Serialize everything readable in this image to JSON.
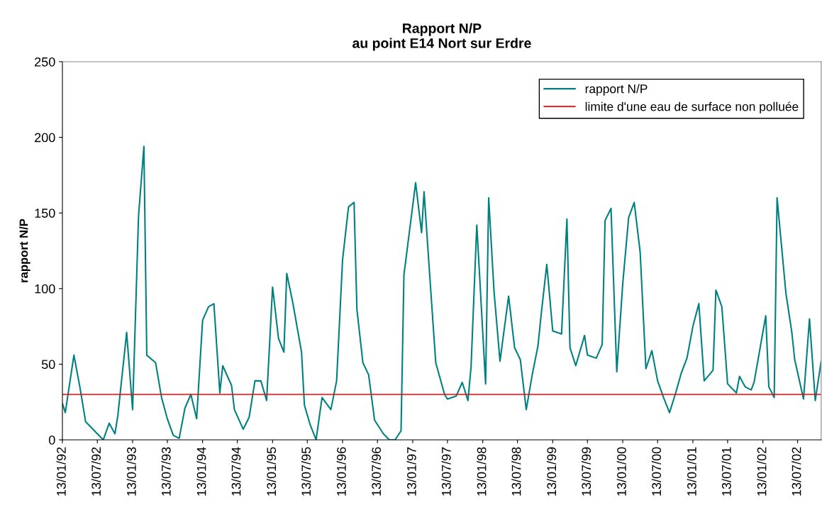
{
  "chart_data": {
    "type": "line",
    "title": "Rapport N/P\nau point E14 Nort sur Erdre",
    "ylabel": "rapport N/P",
    "x": [
      "1992-01-13",
      "1992-01-28",
      "1992-03-13",
      "1992-04-13",
      "1992-05-13",
      "1992-06-13",
      "1992-07-13",
      "1992-08-13",
      "1992-09-13",
      "1992-10-13",
      "1992-10-28",
      "1992-12-13",
      "1993-01-13",
      "1993-02-13",
      "1993-03-13",
      "1993-03-28",
      "1993-05-13",
      "1993-06-13",
      "1993-07-13",
      "1993-08-13",
      "1993-09-13",
      "1993-10-13",
      "1993-11-13",
      "1993-12-13",
      "1994-01-13",
      "1994-02-13",
      "1994-03-13",
      "1994-04-13",
      "1994-04-28",
      "1994-06-13",
      "1994-06-28",
      "1994-08-13",
      "1994-09-13",
      "1994-10-13",
      "1994-11-13",
      "1994-12-13",
      "1995-01-13",
      "1995-02-13",
      "1995-03-13",
      "1995-03-28",
      "1995-04-28",
      "1995-06-13",
      "1995-06-28",
      "1995-07-28",
      "1995-08-28",
      "1995-09-28",
      "1995-11-13",
      "1995-12-13",
      "1996-01-13",
      "1996-02-13",
      "1996-03-13",
      "1996-03-28",
      "1996-04-28",
      "1996-05-28",
      "1996-06-28",
      "1996-08-13",
      "1996-09-13",
      "1996-10-13",
      "1996-11-13",
      "1996-11-28",
      "1997-01-28",
      "1997-02-28",
      "1997-03-13",
      "1997-04-13",
      "1997-05-13",
      "1997-06-28",
      "1997-07-13",
      "1997-08-28",
      "1997-09-28",
      "1997-10-28",
      "1997-11-13",
      "1997-12-13",
      "1998-01-28",
      "1998-02-13",
      "1998-03-13",
      "1998-04-13",
      "1998-05-28",
      "1998-06-28",
      "1998-07-28",
      "1998-08-28",
      "1998-09-28",
      "1998-10-28",
      "1998-11-13",
      "1998-12-13",
      "1999-01-13",
      "1999-02-28",
      "1999-03-28",
      "1999-04-13",
      "1999-05-13",
      "1999-06-28",
      "1999-07-13",
      "1999-08-28",
      "1999-09-28",
      "1999-10-13",
      "1999-11-13",
      "1999-12-13",
      "2000-01-13",
      "2000-02-13",
      "2000-03-13",
      "2000-04-13",
      "2000-05-13",
      "2000-06-13",
      "2000-07-13",
      "2000-08-13",
      "2000-09-13",
      "2000-10-13",
      "2000-11-13",
      "2000-12-13",
      "2001-01-13",
      "2001-02-13",
      "2001-03-13",
      "2001-04-28",
      "2001-05-13",
      "2001-06-13",
      "2001-07-13",
      "2001-08-28",
      "2001-09-13",
      "2001-10-13",
      "2001-11-13",
      "2001-11-28",
      "2002-01-28",
      "2002-02-13",
      "2002-03-13",
      "2002-03-28",
      "2002-05-13",
      "2002-06-13",
      "2002-06-28",
      "2002-08-13",
      "2002-09-13",
      "2002-10-13",
      "2002-11-13"
    ],
    "series": [
      {
        "name": "rapport N/P",
        "color": "#008080",
        "values": [
          24,
          18,
          56,
          35,
          12,
          8,
          4,
          0,
          11,
          4,
          16,
          71,
          20,
          148,
          194,
          56,
          51,
          28,
          14,
          3,
          1,
          21,
          30,
          14,
          79,
          88,
          90,
          31,
          49,
          36,
          20,
          7,
          15,
          39,
          39,
          26,
          101,
          67,
          58,
          110,
          91,
          58,
          23,
          10,
          0,
          28,
          20,
          39,
          119,
          154,
          157,
          86,
          51,
          43,
          13,
          4,
          0,
          0,
          6,
          109,
          170,
          137,
          164,
          106,
          51,
          30,
          27,
          29,
          38,
          26,
          48,
          142,
          37,
          160,
          98,
          52,
          95,
          61,
          53,
          20,
          43,
          62,
          82,
          116,
          72,
          70,
          146,
          61,
          49,
          69,
          56,
          54,
          63,
          145,
          153,
          45,
          103,
          147,
          157,
          124,
          47,
          59,
          39,
          28,
          18,
          30,
          44,
          54,
          75,
          90,
          39,
          46,
          99,
          88,
          37,
          31,
          42,
          35,
          33,
          38,
          82,
          35,
          28,
          160,
          97,
          71,
          53,
          27,
          80,
          26,
          52
        ]
      }
    ],
    "ref_lines": [
      {
        "axis": "y",
        "value": 30,
        "label": "limite d'une eau de surface non polluée",
        "color": "#ff0000",
        "line_style": "solid"
      }
    ],
    "xlim": [
      "1992-01-13",
      "2002-11-13"
    ],
    "xticks": [
      {
        "value": "1992-01-13",
        "label": "13/01/92"
      },
      {
        "value": "1992-07-13",
        "label": "13/07/92"
      },
      {
        "value": "1993-01-13",
        "label": "13/01/93"
      },
      {
        "value": "1993-07-13",
        "label": "13/07/93"
      },
      {
        "value": "1994-01-13",
        "label": "13/01/94"
      },
      {
        "value": "1994-07-13",
        "label": "13/07/94"
      },
      {
        "value": "1995-01-13",
        "label": "13/01/95"
      },
      {
        "value": "1995-07-13",
        "label": "13/07/95"
      },
      {
        "value": "1996-01-13",
        "label": "13/01/96"
      },
      {
        "value": "1996-07-13",
        "label": "13/07/96"
      },
      {
        "value": "1997-01-13",
        "label": "13/01/97"
      },
      {
        "value": "1997-07-13",
        "label": "13/07/97"
      },
      {
        "value": "1998-01-13",
        "label": "13/01/98"
      },
      {
        "value": "1998-07-13",
        "label": "13/07/98"
      },
      {
        "value": "1999-01-13",
        "label": "13/01/99"
      },
      {
        "value": "1999-07-13",
        "label": "13/07/99"
      },
      {
        "value": "2000-01-13",
        "label": "13/01/00"
      },
      {
        "value": "2000-07-13",
        "label": "13/07/00"
      },
      {
        "value": "2001-01-13",
        "label": "13/01/01"
      },
      {
        "value": "2001-07-13",
        "label": "13/07/01"
      },
      {
        "value": "2002-01-13",
        "label": "13/01/02"
      },
      {
        "value": "2002-07-13",
        "label": "13/07/02"
      }
    ],
    "ylim": [
      0,
      250
    ],
    "yticks": [
      0,
      50,
      100,
      150,
      200,
      250
    ],
    "grid": false,
    "legend": "top right",
    "marker": "none",
    "line_style": "solid"
  }
}
